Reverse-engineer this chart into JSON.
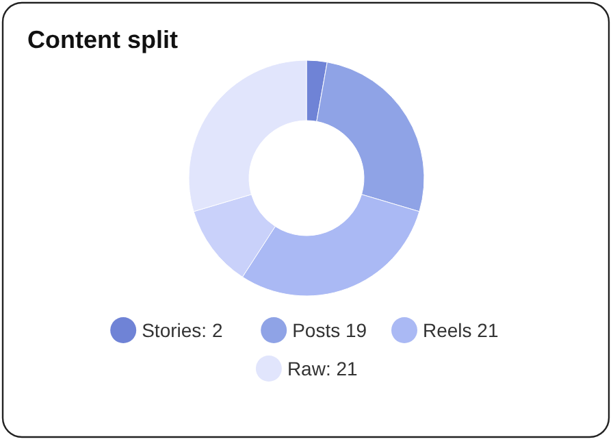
{
  "chart_data": {
    "type": "donut",
    "title": "Content split",
    "categories": [
      "Stories: 2",
      "Posts 19",
      "Reels 21",
      null,
      "Raw: 21"
    ],
    "values": [
      2,
      19,
      21,
      8,
      21
    ],
    "colors": [
      "#6f83d6",
      "#8fa3e6",
      "#aab9f4",
      "#c9d1fa",
      "#e1e5fc"
    ],
    "legend": "bottom"
  }
}
